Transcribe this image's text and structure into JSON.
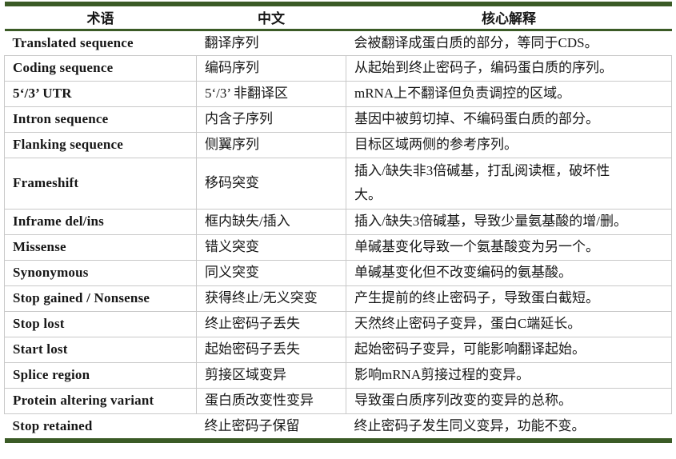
{
  "table": {
    "headers": [
      "术语",
      "中文",
      "核心解释"
    ],
    "rows": [
      {
        "term": "Translated sequence",
        "cn": "翻译序列",
        "desc": "会被翻译成蛋白质的部分，等同于CDS。"
      },
      {
        "term": "Coding sequence",
        "cn": "编码序列",
        "desc": "从起始到终止密码子，编码蛋白质的序列。"
      },
      {
        "term": "5‘/3’ UTR",
        "cn": "5‘/3’ 非翻译区",
        "desc": "mRNA上不翻译但负责调控的区域。"
      },
      {
        "term": "Intron sequence",
        "cn": "内含子序列",
        "desc": "基因中被剪切掉、不编码蛋白质的部分。"
      },
      {
        "term": "Flanking sequence",
        "cn": "侧翼序列",
        "desc": "目标区域两侧的参考序列。"
      },
      {
        "term": "Frameshift",
        "cn": "移码突变",
        "desc": "插入/缺失非3倍碱基，打乱阅读框，破坏性\n大。",
        "tall": true
      },
      {
        "term": "Inframe del/ins",
        "cn": "框内缺失/插入",
        "desc": "插入/缺失3倍碱基，导致少量氨基酸的增/删。"
      },
      {
        "term": "Missense",
        "cn": "错义突变",
        "desc": "单碱基变化导致一个氨基酸变为另一个。"
      },
      {
        "term": "Synonymous",
        "cn": "同义突变",
        "desc": "单碱基变化但不改变编码的氨基酸。"
      },
      {
        "term": "Stop gained / Nonsense",
        "cn": "获得终止/无义突变",
        "desc": "产生提前的终止密码子，导致蛋白截短。"
      },
      {
        "term": "Stop lost",
        "cn": "终止密码子丢失",
        "desc": "天然终止密码子变异，蛋白C端延长。"
      },
      {
        "term": "Start lost",
        "cn": "起始密码子丢失",
        "desc": "起始密码子变异，可能影响翻译起始。"
      },
      {
        "term": "Splice region",
        "cn": "剪接区域变异",
        "desc": "影响mRNA剪接过程的变异。"
      },
      {
        "term": "Protein altering variant",
        "cn": "蛋白质改变性变异",
        "desc": "导致蛋白质序列改变的变异的总称。"
      },
      {
        "term": "Stop retained",
        "cn": "终止密码子保留",
        "desc": "终止密码子发生同义变异，功能不变。"
      }
    ]
  },
  "colors": {
    "accent_green": "#3b5b26",
    "border_gray": "#c9c9c9",
    "text_color": "#161616"
  }
}
